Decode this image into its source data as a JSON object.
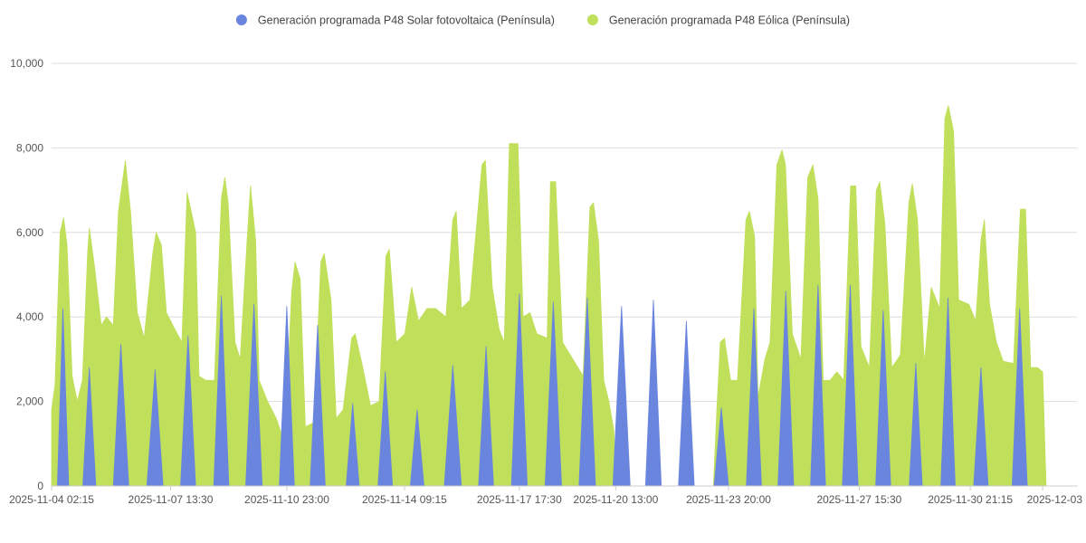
{
  "chart_data": {
    "type": "area",
    "title": "",
    "xlabel": "",
    "ylabel": "",
    "ylim": [
      0,
      10000
    ],
    "yticks": [
      "0",
      "2,000",
      "4,000",
      "6,000",
      "8,000",
      "10,000"
    ],
    "ytick_values": [
      0,
      2000,
      4000,
      6000,
      8000,
      10000
    ],
    "xlim_days": [
      0,
      29.9
    ],
    "xticks": [
      {
        "label": "2025-11-04 02:15",
        "day": 0
      },
      {
        "label": "2025-11-07 13:30",
        "day": 3.47
      },
      {
        "label": "2025-11-10 23:00",
        "day": 6.86
      },
      {
        "label": "2025-11-14 09:15",
        "day": 10.29
      },
      {
        "label": "2025-11-17 17:30",
        "day": 13.64
      },
      {
        "label": "2025-11-20 13:00",
        "day": 16.45
      },
      {
        "label": "2025-11-23 20:00",
        "day": 19.74
      },
      {
        "label": "2025-11-27 15:30",
        "day": 23.55
      },
      {
        "label": "2025-11-30 21:15",
        "day": 26.79
      },
      {
        "label": "2025-12-03",
        "day": 28.9
      }
    ],
    "legend_position": "top-center",
    "series": [
      {
        "name": "Generación programada P48 Solar fotovoltaica (Península)",
        "color": "#6a85de",
        "kind": "solar",
        "points": [
          [
            0.0,
            0
          ],
          [
            0.17,
            0
          ],
          [
            0.33,
            4200
          ],
          [
            0.5,
            0
          ],
          [
            0.91,
            0
          ],
          [
            1.1,
            2800
          ],
          [
            1.29,
            0
          ],
          [
            1.8,
            0
          ],
          [
            2.02,
            3350
          ],
          [
            2.25,
            0
          ],
          [
            2.78,
            0
          ],
          [
            3.02,
            2750
          ],
          [
            3.25,
            0
          ],
          [
            3.76,
            0
          ],
          [
            3.98,
            3550
          ],
          [
            4.2,
            0
          ],
          [
            4.73,
            0
          ],
          [
            4.95,
            4500
          ],
          [
            5.17,
            0
          ],
          [
            5.66,
            0
          ],
          [
            5.9,
            4300
          ],
          [
            6.14,
            0
          ],
          [
            6.64,
            0
          ],
          [
            6.86,
            4250
          ],
          [
            7.08,
            0
          ],
          [
            7.54,
            0
          ],
          [
            7.76,
            3800
          ],
          [
            7.98,
            0
          ],
          [
            8.59,
            0
          ],
          [
            8.78,
            1950
          ],
          [
            8.97,
            0
          ],
          [
            9.52,
            0
          ],
          [
            9.73,
            2700
          ],
          [
            9.94,
            0
          ],
          [
            10.46,
            0
          ],
          [
            10.66,
            1800
          ],
          [
            10.86,
            0
          ],
          [
            11.45,
            0
          ],
          [
            11.7,
            2850
          ],
          [
            11.95,
            0
          ],
          [
            12.45,
            0
          ],
          [
            12.67,
            3300
          ],
          [
            12.89,
            0
          ],
          [
            13.41,
            0
          ],
          [
            13.64,
            4550
          ],
          [
            13.87,
            0
          ],
          [
            14.39,
            0
          ],
          [
            14.63,
            4350
          ],
          [
            14.87,
            0
          ],
          [
            15.38,
            0
          ],
          [
            15.62,
            4450
          ],
          [
            15.86,
            0
          ],
          [
            16.37,
            0
          ],
          [
            16.62,
            4250
          ],
          [
            16.87,
            0
          ],
          [
            17.32,
            0
          ],
          [
            17.55,
            4400
          ],
          [
            17.78,
            0
          ],
          [
            18.28,
            0
          ],
          [
            18.51,
            3900
          ],
          [
            18.74,
            0
          ],
          [
            19.32,
            0
          ],
          [
            19.53,
            1850
          ],
          [
            19.74,
            0
          ],
          [
            20.26,
            0
          ],
          [
            20.48,
            4200
          ],
          [
            20.7,
            0
          ],
          [
            21.18,
            0
          ],
          [
            21.41,
            4600
          ],
          [
            21.64,
            0
          ],
          [
            22.13,
            0
          ],
          [
            22.35,
            4750
          ],
          [
            22.57,
            0
          ],
          [
            23.06,
            0
          ],
          [
            23.29,
            4750
          ],
          [
            23.52,
            0
          ],
          [
            24.03,
            0
          ],
          [
            24.25,
            4150
          ],
          [
            24.47,
            0
          ],
          [
            25.01,
            0
          ],
          [
            25.2,
            2900
          ],
          [
            25.39,
            0
          ],
          [
            25.93,
            0
          ],
          [
            26.14,
            4450
          ],
          [
            26.35,
            0
          ],
          [
            26.89,
            0
          ],
          [
            27.1,
            2800
          ],
          [
            27.31,
            0
          ],
          [
            28.01,
            0
          ],
          [
            28.23,
            4200
          ],
          [
            28.45,
            0
          ],
          [
            29.9,
            0
          ]
        ]
      },
      {
        "name": "Generación programada P48 Eólica (Península)",
        "color": "#c0df5a",
        "kind": "wind",
        "points": [
          [
            0.0,
            1800
          ],
          [
            0.1,
            2400
          ],
          [
            0.25,
            6000
          ],
          [
            0.35,
            6350
          ],
          [
            0.45,
            5700
          ],
          [
            0.6,
            2600
          ],
          [
            0.75,
            2000
          ],
          [
            0.9,
            2500
          ],
          [
            1.05,
            5500
          ],
          [
            1.1,
            6100
          ],
          [
            1.25,
            5200
          ],
          [
            1.45,
            3800
          ],
          [
            1.6,
            4000
          ],
          [
            1.8,
            3800
          ],
          [
            1.95,
            6500
          ],
          [
            2.15,
            7700
          ],
          [
            2.3,
            6500
          ],
          [
            2.5,
            4100
          ],
          [
            2.7,
            3500
          ],
          [
            2.95,
            5500
          ],
          [
            3.05,
            6000
          ],
          [
            3.2,
            5700
          ],
          [
            3.35,
            4100
          ],
          [
            3.6,
            3700
          ],
          [
            3.8,
            3400
          ],
          [
            3.95,
            6950
          ],
          [
            4.2,
            6000
          ],
          [
            4.3,
            2600
          ],
          [
            4.5,
            2500
          ],
          [
            4.75,
            2500
          ],
          [
            4.95,
            6800
          ],
          [
            5.05,
            7300
          ],
          [
            5.15,
            6700
          ],
          [
            5.35,
            3400
          ],
          [
            5.5,
            3000
          ],
          [
            5.7,
            5800
          ],
          [
            5.8,
            7100
          ],
          [
            5.95,
            5800
          ],
          [
            6.05,
            2500
          ],
          [
            6.3,
            2000
          ],
          [
            6.55,
            1600
          ],
          [
            6.8,
            1000
          ],
          [
            7.0,
            4600
          ],
          [
            7.1,
            5300
          ],
          [
            7.25,
            4900
          ],
          [
            7.4,
            1400
          ],
          [
            7.65,
            1500
          ],
          [
            7.85,
            5300
          ],
          [
            7.95,
            5500
          ],
          [
            8.15,
            4400
          ],
          [
            8.3,
            1600
          ],
          [
            8.5,
            1800
          ],
          [
            8.75,
            3500
          ],
          [
            8.85,
            3600
          ],
          [
            9.05,
            2900
          ],
          [
            9.3,
            1900
          ],
          [
            9.55,
            2000
          ],
          [
            9.75,
            5450
          ],
          [
            9.85,
            5600
          ],
          [
            10.05,
            3400
          ],
          [
            10.3,
            3600
          ],
          [
            10.5,
            4700
          ],
          [
            10.7,
            3900
          ],
          [
            10.95,
            4200
          ],
          [
            11.2,
            4200
          ],
          [
            11.5,
            4000
          ],
          [
            11.7,
            6300
          ],
          [
            11.8,
            6500
          ],
          [
            11.95,
            4200
          ],
          [
            12.2,
            4400
          ],
          [
            12.55,
            7600
          ],
          [
            12.65,
            7700
          ],
          [
            12.85,
            4700
          ],
          [
            13.05,
            3700
          ],
          [
            13.2,
            3400
          ],
          [
            13.35,
            8100
          ],
          [
            13.6,
            8100
          ],
          [
            13.75,
            4000
          ],
          [
            13.95,
            4100
          ],
          [
            14.15,
            3600
          ],
          [
            14.45,
            3500
          ],
          [
            14.55,
            7200
          ],
          [
            14.7,
            7200
          ],
          [
            14.9,
            3400
          ],
          [
            15.2,
            3000
          ],
          [
            15.5,
            2600
          ],
          [
            15.7,
            6600
          ],
          [
            15.8,
            6700
          ],
          [
            15.95,
            5800
          ],
          [
            16.1,
            2500
          ],
          [
            16.25,
            2000
          ],
          [
            16.4,
            1300
          ],
          [
            16.45,
            0
          ],
          [
            19.3,
            0
          ],
          [
            19.4,
            1800
          ],
          [
            19.5,
            3400
          ],
          [
            19.62,
            3500
          ],
          [
            19.8,
            2500
          ],
          [
            20.0,
            2500
          ],
          [
            20.25,
            6300
          ],
          [
            20.35,
            6500
          ],
          [
            20.5,
            5900
          ],
          [
            20.6,
            2100
          ],
          [
            20.8,
            3000
          ],
          [
            20.95,
            3400
          ],
          [
            21.15,
            7600
          ],
          [
            21.3,
            7950
          ],
          [
            21.4,
            7600
          ],
          [
            21.6,
            3600
          ],
          [
            21.85,
            3000
          ],
          [
            22.05,
            7300
          ],
          [
            22.2,
            7600
          ],
          [
            22.35,
            6800
          ],
          [
            22.5,
            2500
          ],
          [
            22.7,
            2500
          ],
          [
            22.9,
            2700
          ],
          [
            23.1,
            2500
          ],
          [
            23.3,
            7100
          ],
          [
            23.45,
            7100
          ],
          [
            23.6,
            3300
          ],
          [
            23.85,
            2800
          ],
          [
            24.05,
            7000
          ],
          [
            24.15,
            7200
          ],
          [
            24.3,
            6200
          ],
          [
            24.5,
            2800
          ],
          [
            24.75,
            3100
          ],
          [
            25.0,
            6700
          ],
          [
            25.1,
            7150
          ],
          [
            25.25,
            6300
          ],
          [
            25.45,
            2900
          ],
          [
            25.65,
            4700
          ],
          [
            25.9,
            4200
          ],
          [
            26.05,
            8700
          ],
          [
            26.15,
            9000
          ],
          [
            26.3,
            8400
          ],
          [
            26.45,
            4400
          ],
          [
            26.75,
            4300
          ],
          [
            26.95,
            3900
          ],
          [
            27.1,
            5800
          ],
          [
            27.2,
            6300
          ],
          [
            27.35,
            4300
          ],
          [
            27.55,
            3400
          ],
          [
            27.75,
            2950
          ],
          [
            28.05,
            2900
          ],
          [
            28.25,
            6550
          ],
          [
            28.4,
            6550
          ],
          [
            28.55,
            2800
          ],
          [
            28.75,
            2800
          ],
          [
            28.9,
            2700
          ],
          [
            29.0,
            0
          ],
          [
            29.9,
            0
          ]
        ]
      }
    ]
  }
}
